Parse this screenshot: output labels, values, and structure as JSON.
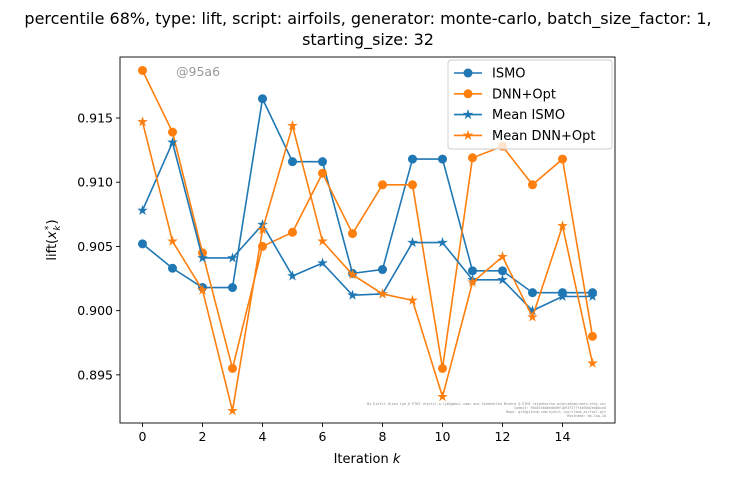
{
  "chart_data": {
    "type": "line",
    "title_line1": "percentile 68%, type: lift, script: airfoils, generator: monte-carlo, batch_size_factor: 1,",
    "title_line2": "starting_size: 32",
    "xlabel_main": "Iteration ",
    "xlabel_var": "k",
    "ylabel_main": "lift(",
    "ylabel_var": "x",
    "ylabel_sub": "k",
    "ylabel_sup": "*",
    "ylabel_close": ")",
    "watermark": "@95a6",
    "credit_lines": [
      "By Kjetil Olsen Lye @ ETHZ <kjetil.o.lye@gmail.com> and Siddhartha Mishra @ ETHZ <siddhartha.mishra@sam.math.ethz.ch>",
      "Commit: 95a67e8d6edb09f1b93f377f4b90d2ed8bca8",
      "Repo: git@github.com:kjetil-lye/ilsmo_airfoil.git",
      "Hostname: mb-lap-10"
    ],
    "xlim": [
      -0.75,
      15.75
    ],
    "ylim": [
      0.89125,
      0.91975
    ],
    "xticks": [
      0,
      2,
      4,
      6,
      8,
      10,
      12,
      14
    ],
    "yticks": [
      0.895,
      0.9,
      0.905,
      0.91,
      0.915
    ],
    "ytick_labels": [
      "0.895",
      "0.900",
      "0.905",
      "0.910",
      "0.915"
    ],
    "grid": false,
    "legend_position": "top-right",
    "x": [
      0,
      1,
      2,
      3,
      4,
      5,
      6,
      7,
      8,
      9,
      10,
      11,
      12,
      13,
      14,
      15
    ],
    "series": [
      {
        "name": "ISMO",
        "color": "#1f77b4",
        "marker": "circle",
        "values": [
          0.9052,
          0.9033,
          0.9018,
          0.9018,
          0.9165,
          0.9116,
          0.9116,
          0.9029,
          0.9032,
          0.9118,
          0.9118,
          0.9031,
          0.9031,
          0.9014,
          0.9014,
          0.9014
        ]
      },
      {
        "name": "DNN+Opt",
        "color": "#ff7f0e",
        "marker": "circle",
        "values": [
          0.9187,
          0.9139,
          0.9045,
          0.8955,
          0.905,
          0.9061,
          0.9107,
          0.906,
          0.9098,
          0.9098,
          0.8955,
          0.9119,
          0.9128,
          0.9098,
          0.9118,
          0.898
        ]
      },
      {
        "name": "Mean ISMO",
        "color": "#1f77b4",
        "marker": "star",
        "values": [
          0.9078,
          0.9131,
          0.9041,
          0.9041,
          0.9067,
          0.9027,
          0.9037,
          0.9012,
          0.9013,
          0.9053,
          0.9053,
          0.9024,
          0.9024,
          0.9,
          0.9011,
          0.9011
        ]
      },
      {
        "name": "Mean DNN+Opt",
        "color": "#ff7f0e",
        "marker": "star",
        "values": [
          0.9147,
          0.9054,
          0.9016,
          0.8922,
          0.9063,
          0.9144,
          0.9054,
          0.9028,
          0.9013,
          0.9008,
          0.8933,
          0.9022,
          0.9042,
          0.8995,
          0.9066,
          0.8959
        ]
      }
    ]
  }
}
